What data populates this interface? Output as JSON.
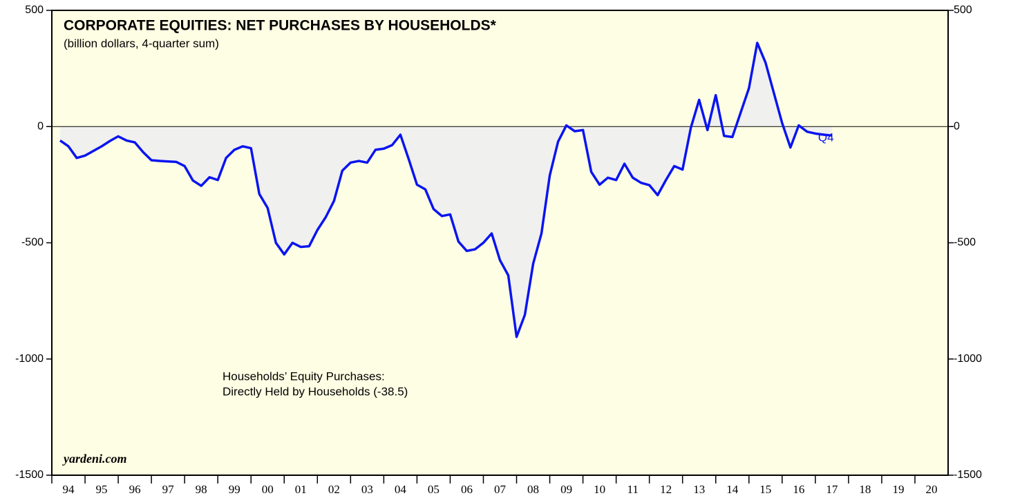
{
  "chart_data": {
    "type": "area-line",
    "title": "CORPORATE EQUITIES: NET PURCHASES BY HOUSEHOLDS*",
    "subtitle": "(billion dollars, 4-quarter sum)",
    "annotation": [
      "Households’ Equity Purchases:",
      "Directly Held by Households (-38.5)"
    ],
    "source": "yardeni.com",
    "end_label": "Q4",
    "x": [
      1994.25,
      1994.5,
      1994.75,
      1995,
      1995.25,
      1995.5,
      1995.75,
      1996,
      1996.25,
      1996.5,
      1996.75,
      1997,
      1997.25,
      1997.5,
      1997.75,
      1998,
      1998.25,
      1998.5,
      1998.75,
      1999,
      1999.25,
      1999.5,
      1999.75,
      2000,
      2000.25,
      2000.5,
      2000.75,
      2001,
      2001.25,
      2001.5,
      2001.75,
      2002,
      2002.25,
      2002.5,
      2002.75,
      2003,
      2003.25,
      2003.5,
      2003.75,
      2004,
      2004.25,
      2004.5,
      2004.75,
      2005,
      2005.25,
      2005.5,
      2005.75,
      2006,
      2006.25,
      2006.5,
      2006.75,
      2007,
      2007.25,
      2007.5,
      2007.75,
      2008,
      2008.25,
      2008.5,
      2008.75,
      2009,
      2009.25,
      2009.5,
      2009.75,
      2010,
      2010.25,
      2010.5,
      2010.75,
      2011,
      2011.25,
      2011.5,
      2011.75,
      2012,
      2012.25,
      2012.5,
      2012.75,
      2013,
      2013.25,
      2013.5,
      2013.75,
      2014,
      2014.25,
      2014.5,
      2014.75,
      2015,
      2015.25,
      2015.5,
      2015.75,
      2016,
      2016.25,
      2016.5,
      2016.75,
      2017,
      2017.25,
      2017.5
    ],
    "series": [
      {
        "name": "Directly Held by Households",
        "color": "#0a14f0",
        "values": [
          -60,
          -85,
          -135,
          -125,
          -105,
          -85,
          -62,
          -42,
          -60,
          -68,
          -110,
          -145,
          -148,
          -150,
          -152,
          -170,
          -232,
          -255,
          -218,
          -230,
          -135,
          -100,
          -85,
          -93,
          -290,
          -350,
          -500,
          -550,
          -500,
          -518,
          -515,
          -445,
          -390,
          -320,
          -190,
          -155,
          -148,
          -155,
          -100,
          -95,
          -80,
          -35,
          -140,
          -250,
          -270,
          -355,
          -385,
          -378,
          -495,
          -535,
          -528,
          -500,
          -460,
          -575,
          -640,
          -905,
          -810,
          -590,
          -460,
          -210,
          -65,
          5,
          -20,
          -15,
          -195,
          -250,
          -220,
          -230,
          -160,
          -220,
          -242,
          -252,
          -295,
          -230,
          -170,
          -185,
          -5,
          115,
          -15,
          135,
          -40,
          -45,
          60,
          165,
          360,
          275,
          145,
          15,
          -90,
          5,
          -22,
          -30,
          -35,
          -38.5
        ]
      }
    ],
    "ylim": [
      -1500,
      500
    ],
    "yticks": [
      -1500,
      -1000,
      -500,
      0,
      500
    ],
    "xlim": [
      1994,
      2021
    ],
    "xticks": [
      {
        "value": 1994,
        "label": "94"
      },
      {
        "value": 1995,
        "label": "95"
      },
      {
        "value": 1996,
        "label": "96"
      },
      {
        "value": 1997,
        "label": "97"
      },
      {
        "value": 1998,
        "label": "98"
      },
      {
        "value": 1999,
        "label": "99"
      },
      {
        "value": 2000,
        "label": "00"
      },
      {
        "value": 2001,
        "label": "01"
      },
      {
        "value": 2002,
        "label": "02"
      },
      {
        "value": 2003,
        "label": "03"
      },
      {
        "value": 2004,
        "label": "04"
      },
      {
        "value": 2005,
        "label": "05"
      },
      {
        "value": 2006,
        "label": "06"
      },
      {
        "value": 2007,
        "label": "07"
      },
      {
        "value": 2008,
        "label": "08"
      },
      {
        "value": 2009,
        "label": "09"
      },
      {
        "value": 2010,
        "label": "10"
      },
      {
        "value": 2011,
        "label": "11"
      },
      {
        "value": 2012,
        "label": "12"
      },
      {
        "value": 2013,
        "label": "13"
      },
      {
        "value": 2014,
        "label": "14"
      },
      {
        "value": 2015,
        "label": "15"
      },
      {
        "value": 2016,
        "label": "16"
      },
      {
        "value": 2017,
        "label": "17"
      },
      {
        "value": 2018,
        "label": "18"
      },
      {
        "value": 2019,
        "label": "19"
      },
      {
        "value": 2020,
        "label": "20"
      }
    ]
  }
}
